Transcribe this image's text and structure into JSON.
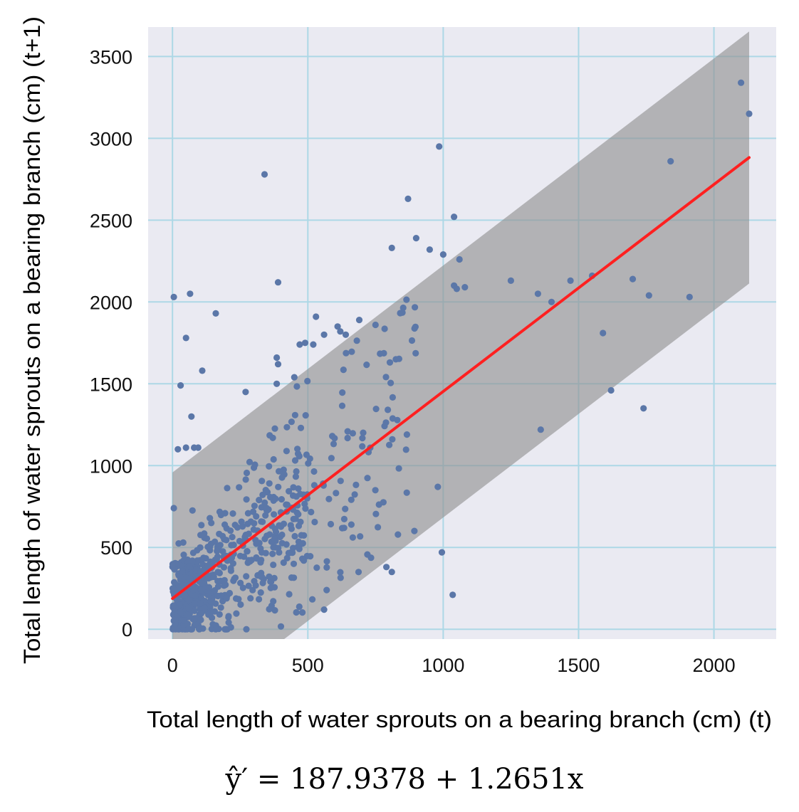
{
  "chart_data": {
    "type": "scatter",
    "title": "",
    "xlabel": "Total length of water sprouts on a bearing branch (cm) (t)",
    "ylabel": "Total length of water sprouts on a bearing branch (cm) (t+1)",
    "xlim": [
      -90,
      2230
    ],
    "ylim": [
      -60,
      3680
    ],
    "xticks": [
      0,
      500,
      1000,
      1500,
      2000
    ],
    "yticks": [
      0,
      500,
      1000,
      1500,
      2000,
      2500,
      3000,
      3500
    ],
    "grid": true,
    "equation": "ŷ′ = 187.9378 + 1.2651x",
    "regression": {
      "intercept": 187.9378,
      "slope": 1.2651,
      "x_range": [
        0,
        2130
      ]
    },
    "prediction_band": {
      "half_width": 770,
      "x_range": [
        0,
        2130
      ]
    },
    "colors": {
      "plot_background": "#eaeaf2",
      "grid": "#add8e6",
      "points": "#5b77a8",
      "regression_line": "#ff2020",
      "band": "#8f8f8f"
    },
    "outlier_points": [
      [
        5,
        2030
      ],
      [
        30,
        1490
      ],
      [
        50,
        1780
      ],
      [
        65,
        2050
      ],
      [
        70,
        1300
      ],
      [
        110,
        1580
      ],
      [
        160,
        1930
      ],
      [
        20,
        1100
      ],
      [
        50,
        1110
      ],
      [
        80,
        1110
      ],
      [
        95,
        1110
      ],
      [
        5,
        740
      ],
      [
        270,
        1450
      ],
      [
        340,
        2780
      ],
      [
        390,
        2120
      ],
      [
        385,
        1660
      ],
      [
        390,
        1620
      ],
      [
        385,
        1500
      ],
      [
        450,
        1540
      ],
      [
        470,
        1740
      ],
      [
        490,
        1750
      ],
      [
        520,
        1740
      ],
      [
        530,
        1910
      ],
      [
        560,
        1800
      ],
      [
        610,
        1850
      ],
      [
        620,
        1820
      ],
      [
        640,
        1800
      ],
      [
        690,
        1890
      ],
      [
        750,
        1860
      ],
      [
        810,
        2330
      ],
      [
        870,
        2630
      ],
      [
        900,
        2390
      ],
      [
        950,
        2320
      ],
      [
        985,
        2950
      ],
      [
        1000,
        2290
      ],
      [
        1040,
        2520
      ],
      [
        1060,
        2260
      ],
      [
        1040,
        2100
      ],
      [
        1050,
        2080
      ],
      [
        1080,
        2090
      ],
      [
        1250,
        2130
      ],
      [
        1350,
        2050
      ],
      [
        1400,
        2000
      ],
      [
        1470,
        2130
      ],
      [
        1550,
        2160
      ],
      [
        1700,
        2140
      ],
      [
        1760,
        2040
      ],
      [
        1910,
        2030
      ],
      [
        1840,
        2860
      ],
      [
        2100,
        3340
      ],
      [
        2130,
        3150
      ],
      [
        1360,
        1220
      ],
      [
        1590,
        1810
      ],
      [
        1620,
        1460
      ],
      [
        1740,
        1350
      ],
      [
        980,
        870
      ],
      [
        995,
        470
      ],
      [
        1035,
        210
      ],
      [
        790,
        380
      ],
      [
        810,
        350
      ],
      [
        560,
        120
      ]
    ],
    "dense_points_seed": 20240613,
    "dense_points_count": 720
  }
}
